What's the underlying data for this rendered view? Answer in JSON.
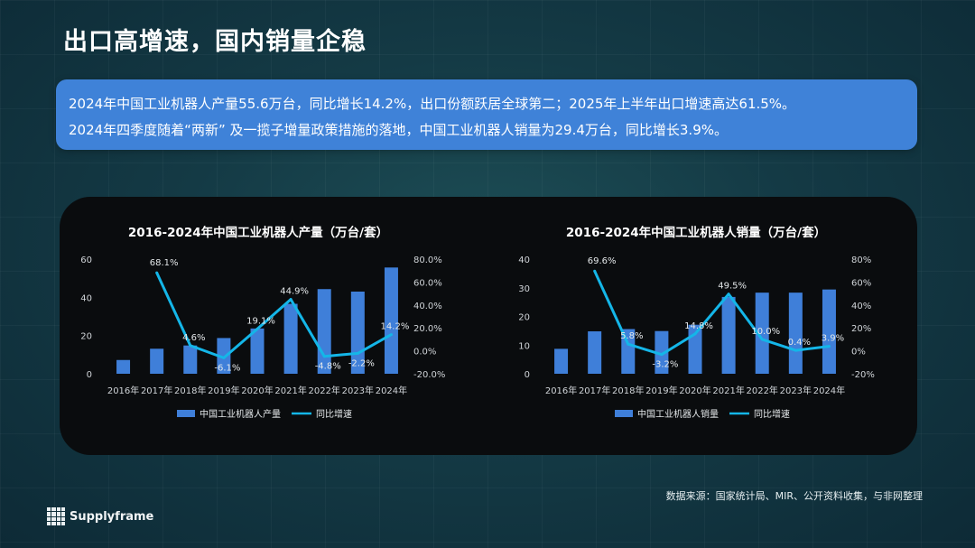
{
  "page": {
    "title": "出口高增速，国内销量企稳",
    "summary_line1": "2024年中国工业机器人产量55.6万台，同比增长14.2%，出口份额跃居全球第二；2025年上半年出口增速高达61.5%。",
    "summary_line2": "2024年四季度随着“两新” 及一揽子增量政策措施的落地，中国工业机器人销量为29.4万台，同比增长3.9%。",
    "source": "数据来源：国家统计局、MIR、公开资料收集，与非网整理",
    "logo_text": "Supplyframe",
    "colors": {
      "bar": "#3f7fd9",
      "line": "#14b6e8",
      "summary_bg": "#3f82d8",
      "panel_bg": "#0a0c0e"
    }
  },
  "chart_data": [
    {
      "type": "bar",
      "title": "2016-2024年中国工业机器人产量（万台/套）",
      "categories": [
        "2016年",
        "2017年",
        "2018年",
        "2019年",
        "2020年",
        "2021年",
        "2022年",
        "2023年",
        "2024年"
      ],
      "y_ticks": [
        "0",
        "20",
        "40",
        "60"
      ],
      "y2_ticks": [
        "-20.0%",
        "0.0%",
        "20.0%",
        "40.0%",
        "60.0%",
        "80.0%"
      ],
      "ylim": [
        0,
        60
      ],
      "y2lim": [
        -20,
        80
      ],
      "series": [
        {
          "name": "中国工业机器人产量",
          "kind": "bar",
          "values": [
            7.2,
            13.1,
            14.8,
            18.7,
            23.7,
            36.6,
            44.3,
            43.0,
            55.6
          ]
        },
        {
          "name": "同比增速",
          "kind": "line",
          "values": [
            null,
            68.1,
            4.6,
            -6.1,
            19.1,
            44.9,
            -4.8,
            -2.2,
            14.2
          ],
          "labels": [
            "",
            "68.1%",
            "4.6%",
            "-6.1%",
            "19.1%",
            "44.9%",
            "-4.8%",
            "-2.2%",
            "14.2%"
          ]
        }
      ],
      "legend": "bottom"
    },
    {
      "type": "bar",
      "title": "2016-2024年中国工业机器人销量（万台/套）",
      "categories": [
        "2016年",
        "2017年",
        "2018年",
        "2019年",
        "2020年",
        "2021年",
        "2022年",
        "2023年",
        "2024年"
      ],
      "y_ticks": [
        "0",
        "10",
        "20",
        "30",
        "40"
      ],
      "y2_ticks": [
        "-20%",
        "0%",
        "20%",
        "40%",
        "60%",
        "80%"
      ],
      "ylim": [
        0,
        40
      ],
      "y2lim": [
        -20,
        80
      ],
      "series": [
        {
          "name": "中国工业机器人销量",
          "kind": "bar",
          "values": [
            8.7,
            14.8,
            15.6,
            14.9,
            17.1,
            26.8,
            28.3,
            28.3,
            29.4
          ]
        },
        {
          "name": "同比增速",
          "kind": "line",
          "values": [
            null,
            69.6,
            5.8,
            -3.2,
            14.8,
            49.5,
            10.0,
            0.4,
            3.9
          ],
          "labels": [
            "",
            "69.6%",
            "5.8%",
            "-3.2%",
            "14.8%",
            "49.5%",
            "10.0%",
            "0.4%",
            "3.9%"
          ]
        }
      ],
      "legend": "bottom"
    }
  ]
}
